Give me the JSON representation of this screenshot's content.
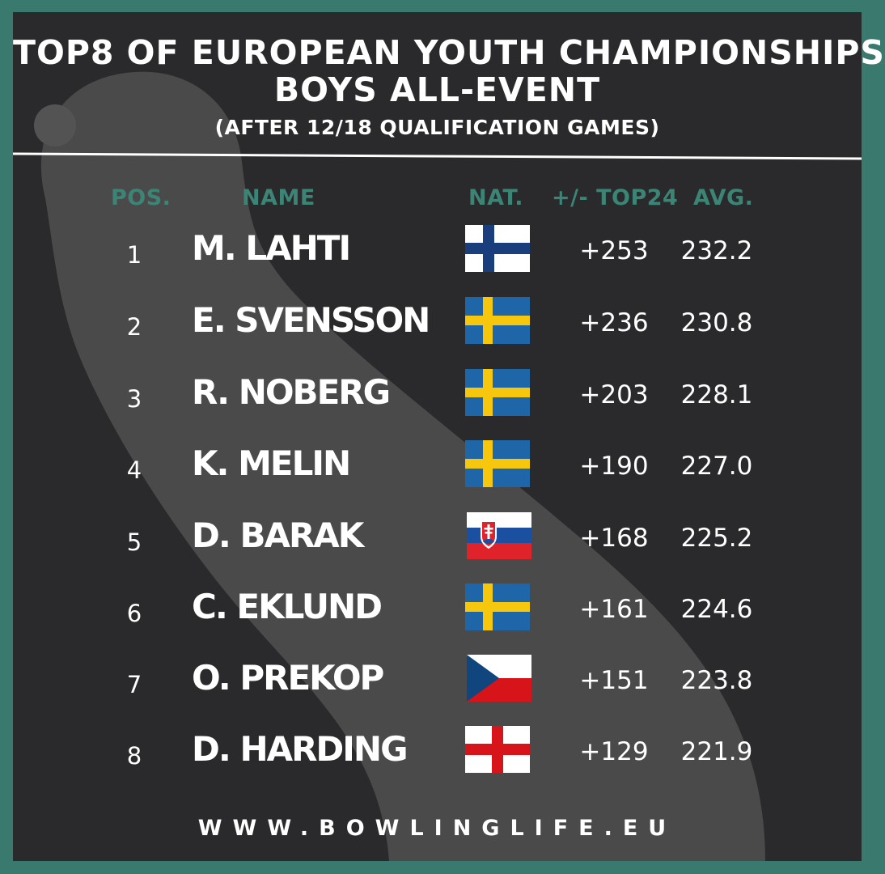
{
  "header": {
    "title_line1": "TOP8 OF EUROPEAN YOUTH CHAMPIONSHIPS",
    "title_line2": "BOYS ALL-EVENT",
    "subtitle": "(AFTER 12/18 QUALIFICATION GAMES)"
  },
  "columns": {
    "pos": "POS.",
    "name": "NAME",
    "nat": "NAT.",
    "diff": "+/- TOP24",
    "avg": "AVG."
  },
  "rows": [
    {
      "pos": "1",
      "name": "M. LAHTI",
      "flag": "finland-flag-icon",
      "diff": "+253",
      "avg": "232.2"
    },
    {
      "pos": "2",
      "name": "E. SVENSSON",
      "flag": "sweden-flag-icon",
      "diff": "+236",
      "avg": "230.8"
    },
    {
      "pos": "3",
      "name": "R. NOBERG",
      "flag": "sweden-flag-icon",
      "diff": "+203",
      "avg": "228.1"
    },
    {
      "pos": "4",
      "name": "K. MELIN",
      "flag": "sweden-flag-icon",
      "diff": "+190",
      "avg": "227.0"
    },
    {
      "pos": "5",
      "name": "D. BARAK",
      "flag": "slovakia-flag-icon",
      "diff": "+168",
      "avg": "225.2"
    },
    {
      "pos": "6",
      "name": "C. EKLUND",
      "flag": "sweden-flag-icon",
      "diff": "+161",
      "avg": "224.6"
    },
    {
      "pos": "7",
      "name": "O. PREKOP",
      "flag": "czechia-flag-icon",
      "diff": "+151",
      "avg": "223.8"
    },
    {
      "pos": "8",
      "name": "D. HARDING",
      "flag": "england-flag-icon",
      "diff": "+129",
      "avg": "221.9"
    }
  ],
  "footer": {
    "url": "WWW.BOWLINGLIFE.EU"
  },
  "colors": {
    "frame": "#3a7a6e",
    "background": "#2a2a2c",
    "accent": "#3c8475",
    "text": "#ffffff"
  }
}
